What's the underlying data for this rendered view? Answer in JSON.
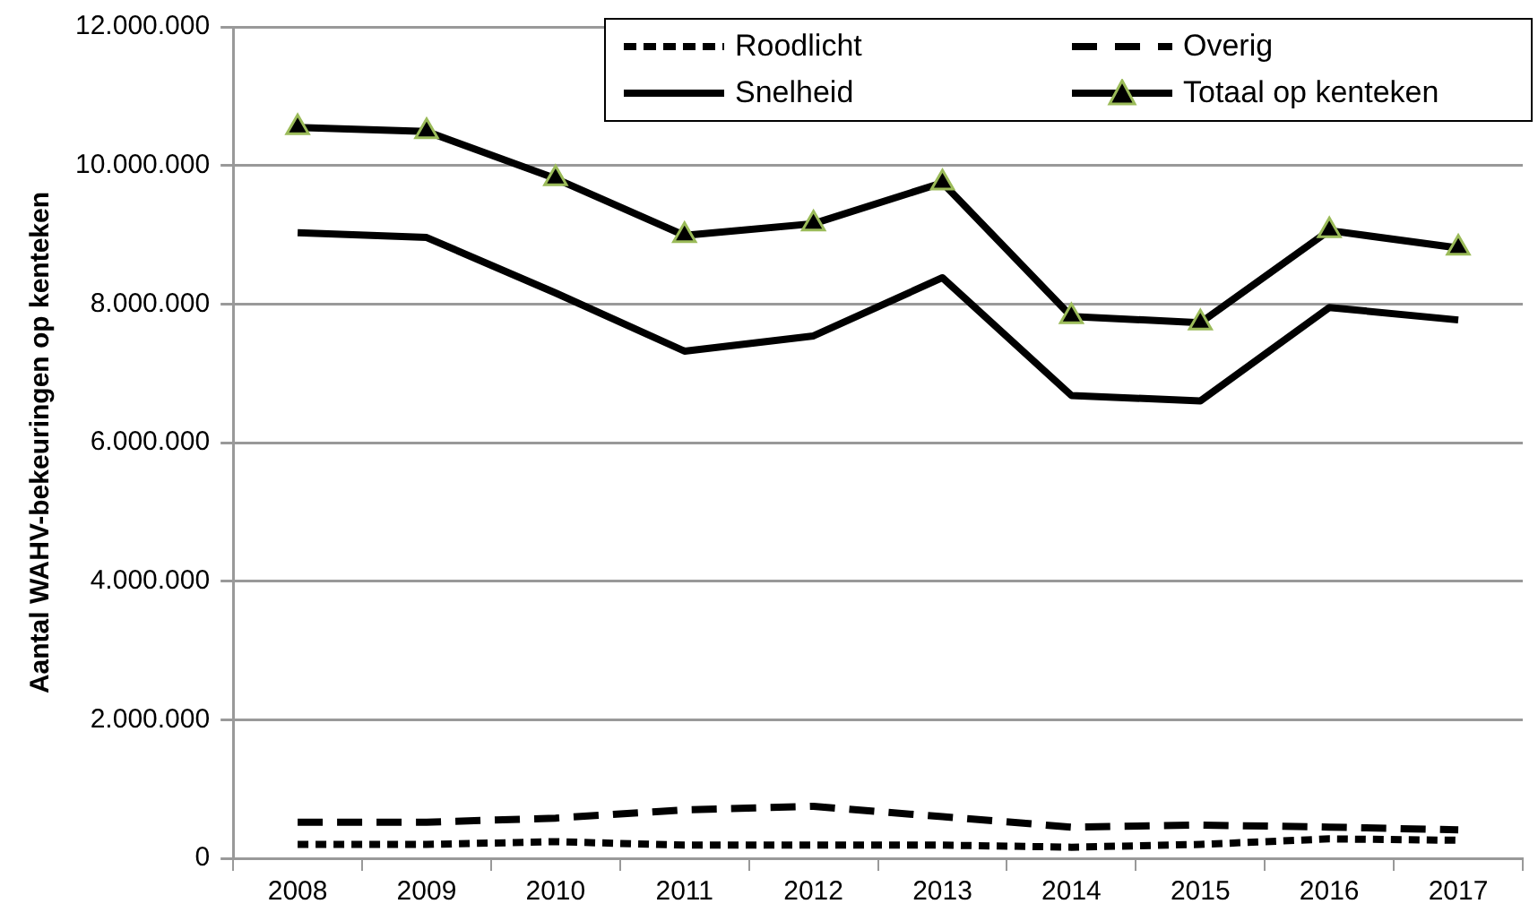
{
  "chart_data": {
    "type": "line",
    "ylabel": "Aantal WAHV-bekeuringen op kenteken",
    "categories": [
      "2008",
      "2009",
      "2010",
      "2011",
      "2012",
      "2013",
      "2014",
      "2015",
      "2016",
      "2017"
    ],
    "series": [
      {
        "name": "Roodlicht",
        "color": "#000000",
        "line_style": "dotted",
        "marker": "none",
        "values": [
          200000,
          200000,
          240000,
          190000,
          190000,
          190000,
          160000,
          200000,
          280000,
          260000
        ]
      },
      {
        "name": "Overig",
        "color": "#000000",
        "line_style": "dashed",
        "marker": "none",
        "values": [
          520000,
          520000,
          580000,
          700000,
          750000,
          600000,
          450000,
          480000,
          450000,
          410000
        ]
      },
      {
        "name": "Snelheid",
        "color": "#000000",
        "line_style": "solid",
        "marker": "none",
        "values": [
          9030000,
          8960000,
          8160000,
          7320000,
          7540000,
          8380000,
          6680000,
          6600000,
          7950000,
          7770000
        ]
      },
      {
        "name": "Totaal op kenteken",
        "color": "#000000",
        "line_style": "solid",
        "marker": "triangle",
        "values": [
          10550000,
          10490000,
          9810000,
          8990000,
          9160000,
          9750000,
          7820000,
          7730000,
          9060000,
          8810000
        ]
      }
    ],
    "ylim": [
      0,
      12000000
    ],
    "yticks": [
      {
        "value": 0,
        "label": "0"
      },
      {
        "value": 2000000,
        "label": "2.000.000"
      },
      {
        "value": 4000000,
        "label": "4.000.000"
      },
      {
        "value": 6000000,
        "label": "6.000.000"
      },
      {
        "value": 8000000,
        "label": "8.000.000"
      },
      {
        "value": 10000000,
        "label": "10.000.000"
      },
      {
        "value": 12000000,
        "label": "12.000.000"
      }
    ],
    "grid": "y",
    "legend": "top right"
  }
}
